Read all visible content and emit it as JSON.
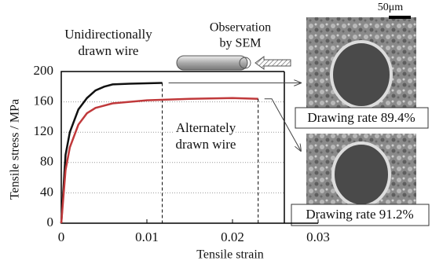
{
  "chart_data": {
    "type": "line",
    "xlabel": "Tensile strain",
    "ylabel": "Tensile stress / MPa",
    "xlim": [
      0,
      0.03
    ],
    "ylim": [
      0,
      200
    ],
    "xticks": [
      0,
      0.01,
      0.02,
      0.03
    ],
    "yticks": [
      0,
      40,
      80,
      120,
      160,
      200
    ],
    "grid": true,
    "series": [
      {
        "label": [
          "Unidirectionally",
          "drawn wire"
        ],
        "color": "#111111",
        "x": [
          0,
          0.0005,
          0.001,
          0.002,
          0.003,
          0.004,
          0.005,
          0.006,
          0.008,
          0.0118
        ],
        "values": [
          0,
          90,
          120,
          150,
          165,
          175,
          180,
          183,
          184,
          185
        ]
      },
      {
        "label": [
          "Alternately",
          "drawn wire"
        ],
        "color": "#c0393b",
        "x": [
          0,
          0.0005,
          0.001,
          0.002,
          0.003,
          0.004,
          0.006,
          0.01,
          0.015,
          0.02,
          0.023
        ],
        "values": [
          0,
          70,
          100,
          130,
          145,
          152,
          158,
          162,
          164,
          165,
          164
        ]
      }
    ],
    "annotations": {
      "observation": [
        "Observation",
        "by SEM"
      ],
      "scale": "50μm",
      "image_1": "Drawing rate 89.4%",
      "image_2": "Drawing rate 91.2%"
    }
  }
}
